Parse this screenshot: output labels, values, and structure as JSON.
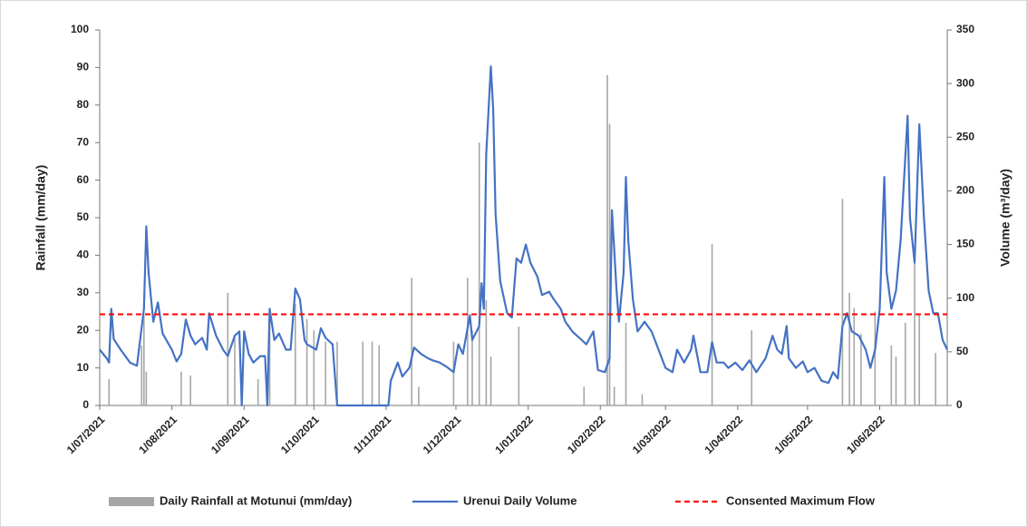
{
  "chart_data": {
    "type": "combo",
    "y_label": "Rainfall (mm/day)",
    "y2_label": "Volume (m³/day)",
    "xlim": [
      "2021-07-01",
      "2022-06-30"
    ],
    "xticks": [
      {
        "value": "2021-07-01",
        "label": "1/07/2021"
      },
      {
        "value": "2021-08-01",
        "label": "1/08/2021"
      },
      {
        "value": "2021-09-01",
        "label": "1/09/2021"
      },
      {
        "value": "2021-10-01",
        "label": "1/10/2021"
      },
      {
        "value": "2021-11-01",
        "label": "1/11/2021"
      },
      {
        "value": "2021-12-01",
        "label": "1/12/2021"
      },
      {
        "value": "2022-01-01",
        "label": "1/01/2022"
      },
      {
        "value": "2022-02-01",
        "label": "1/02/2022"
      },
      {
        "value": "2022-03-01",
        "label": "1/03/2022"
      },
      {
        "value": "2022-04-01",
        "label": "1/04/2022"
      },
      {
        "value": "2022-05-01",
        "label": "1/05/2022"
      },
      {
        "value": "2022-06-01",
        "label": "1/06/2022"
      }
    ],
    "ylim": [
      0,
      100
    ],
    "yticks": [
      0,
      10,
      20,
      30,
      40,
      50,
      60,
      70,
      80,
      90,
      100
    ],
    "y2lim": [
      0,
      350
    ],
    "y2ticks": [
      0,
      50,
      100,
      150,
      200,
      250,
      300,
      350
    ],
    "grid": false,
    "series": [
      {
        "name": "Daily Rainfall at Motunui (mm/day)",
        "type": "bar",
        "color": "#a6a6a6",
        "x": [
          "2021-07-05",
          "2021-07-19",
          "2021-07-20",
          "2021-07-21",
          "2021-08-05",
          "2021-08-09",
          "2021-08-25",
          "2021-08-28",
          "2021-09-07",
          "2021-09-12",
          "2021-09-23",
          "2021-09-28",
          "2021-10-01",
          "2021-10-06",
          "2021-10-11",
          "2021-10-22",
          "2021-10-26",
          "2021-10-29",
          "2021-11-12",
          "2021-11-15",
          "2021-11-30",
          "2021-12-06",
          "2021-12-08",
          "2021-12-11",
          "2021-12-14",
          "2021-12-16",
          "2021-12-28",
          "2022-01-25",
          "2022-02-04",
          "2022-02-05",
          "2022-02-07",
          "2022-02-12",
          "2022-02-19",
          "2022-03-21",
          "2022-04-07",
          "2022-05-16",
          "2022-05-19",
          "2022-05-21",
          "2022-05-24",
          "2022-05-30",
          "2022-06-06",
          "2022-06-08",
          "2022-06-12",
          "2022-06-16",
          "2022-06-18",
          "2022-06-25"
        ],
        "values": [
          7,
          16,
          24,
          9,
          9,
          8,
          30,
          18,
          7,
          25,
          27,
          23,
          20,
          17,
          17,
          17,
          17,
          16,
          34,
          5,
          17,
          34,
          20,
          70,
          28,
          13,
          21,
          5,
          88,
          75,
          5,
          22,
          3,
          43,
          20,
          55,
          30,
          26,
          19,
          25,
          16,
          13,
          22,
          38,
          24,
          14
        ]
      },
      {
        "name": "Urenui Daily Volume",
        "type": "line",
        "axis": "y2",
        "color": "#4472c4",
        "x": [
          "2021-07-01",
          "2021-07-04",
          "2021-07-05",
          "2021-07-06",
          "2021-07-07",
          "2021-07-10",
          "2021-07-14",
          "2021-07-17",
          "2021-07-20",
          "2021-07-21",
          "2021-07-22",
          "2021-07-24",
          "2021-07-26",
          "2021-07-28",
          "2021-08-01",
          "2021-08-03",
          "2021-08-05",
          "2021-08-07",
          "2021-08-09",
          "2021-08-11",
          "2021-08-14",
          "2021-08-16",
          "2021-08-17",
          "2021-08-20",
          "2021-08-23",
          "2021-08-25",
          "2021-08-28",
          "2021-08-30",
          "2021-08-31",
          "2021-09-01",
          "2021-09-03",
          "2021-09-05",
          "2021-09-08",
          "2021-09-10",
          "2021-09-11",
          "2021-09-12",
          "2021-09-14",
          "2021-09-16",
          "2021-09-19",
          "2021-09-21",
          "2021-09-23",
          "2021-09-25",
          "2021-09-27",
          "2021-09-28",
          "2021-10-02",
          "2021-10-04",
          "2021-10-06",
          "2021-10-09",
          "2021-10-11",
          "2021-11-02",
          "2021-11-03",
          "2021-11-06",
          "2021-11-08",
          "2021-11-11",
          "2021-11-13",
          "2021-11-16",
          "2021-11-19",
          "2021-11-21",
          "2021-11-24",
          "2021-11-27",
          "2021-11-30",
          "2021-12-02",
          "2021-12-04",
          "2021-12-07",
          "2021-12-08",
          "2021-12-11",
          "2021-12-12",
          "2021-12-13",
          "2021-12-14",
          "2021-12-16",
          "2021-12-17",
          "2021-12-18",
          "2021-12-20",
          "2021-12-23",
          "2021-12-25",
          "2021-12-27",
          "2021-12-29",
          "2021-12-31",
          "2022-01-02",
          "2022-01-05",
          "2022-01-07",
          "2022-01-10",
          "2022-01-12",
          "2022-01-15",
          "2022-01-17",
          "2022-01-20",
          "2022-01-23",
          "2022-01-26",
          "2022-01-29",
          "2022-01-31",
          "2022-02-03",
          "2022-02-05",
          "2022-02-06",
          "2022-02-08",
          "2022-02-09",
          "2022-02-11",
          "2022-02-12",
          "2022-02-13",
          "2022-02-15",
          "2022-02-17",
          "2022-02-20",
          "2022-02-23",
          "2022-02-26",
          "2022-03-01",
          "2022-03-04",
          "2022-03-06",
          "2022-03-09",
          "2022-03-12",
          "2022-03-13",
          "2022-03-16",
          "2022-03-19",
          "2022-03-21",
          "2022-03-23",
          "2022-03-26",
          "2022-03-28",
          "2022-03-31",
          "2022-04-03",
          "2022-04-06",
          "2022-04-09",
          "2022-04-13",
          "2022-04-16",
          "2022-04-18",
          "2022-04-20",
          "2022-04-22",
          "2022-04-23",
          "2022-04-26",
          "2022-04-29",
          "2022-05-01",
          "2022-05-04",
          "2022-05-07",
          "2022-05-10",
          "2022-05-12",
          "2022-05-14",
          "2022-05-16",
          "2022-05-18",
          "2022-05-20",
          "2022-05-23",
          "2022-05-26",
          "2022-05-28",
          "2022-05-30",
          "2022-06-01",
          "2022-06-03",
          "2022-06-04",
          "2022-06-06",
          "2022-06-08",
          "2022-06-10",
          "2022-06-13",
          "2022-06-14",
          "2022-06-16",
          "2022-06-18",
          "2022-06-20",
          "2022-06-22",
          "2022-06-24",
          "2022-06-26",
          "2022-06-28",
          "2022-06-30"
        ],
        "values": [
          52,
          44,
          40,
          90,
          62,
          52,
          40,
          37,
          90,
          167,
          124,
          78,
          96,
          67,
          52,
          41,
          48,
          80,
          65,
          57,
          63,
          52,
          86,
          65,
          52,
          46,
          65,
          69,
          0,
          69,
          48,
          40,
          46,
          46,
          0,
          90,
          61,
          67,
          52,
          52,
          109,
          99,
          61,
          57,
          52,
          72,
          63,
          57,
          0,
          0,
          23,
          40,
          27,
          35,
          54,
          48,
          44,
          42,
          40,
          36,
          31,
          57,
          48,
          84,
          61,
          74,
          114,
          90,
          234,
          316,
          276,
          179,
          116,
          86,
          82,
          137,
          133,
          150,
          133,
          120,
          103,
          106,
          99,
          90,
          78,
          69,
          63,
          57,
          69,
          33,
          31,
          44,
          182,
          107,
          78,
          124,
          213,
          154,
          99,
          69,
          78,
          69,
          52,
          35,
          31,
          52,
          40,
          52,
          65,
          31,
          31,
          59,
          40,
          40,
          35,
          40,
          33,
          42,
          31,
          44,
          65,
          52,
          48,
          74,
          44,
          35,
          41,
          31,
          35,
          23,
          21,
          31,
          25,
          74,
          86,
          69,
          65,
          52,
          35,
          52,
          90,
          213,
          124,
          90,
          107,
          154,
          270,
          175,
          133,
          262,
          175,
          107,
          86,
          86,
          61,
          52
        ]
      },
      {
        "name": "Consented Maximum Flow",
        "type": "hline",
        "axis": "y2",
        "color": "#ff0000",
        "value": 85
      }
    ]
  }
}
